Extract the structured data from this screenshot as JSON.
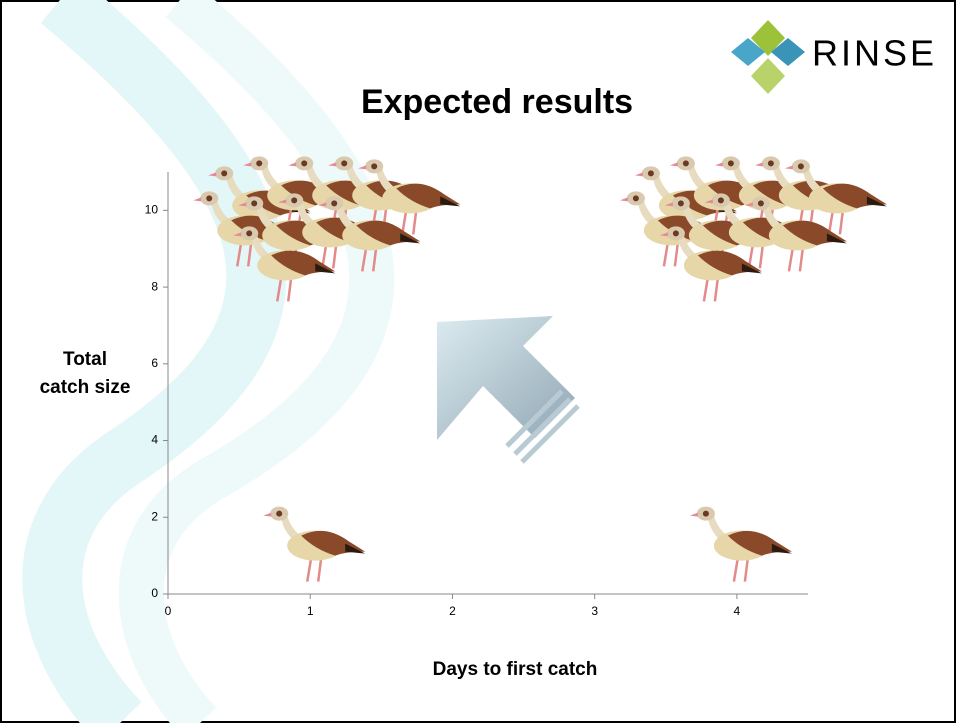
{
  "brand": "RINSE",
  "chart_data": {
    "type": "scatter",
    "title": "Expected results",
    "x_label": "Days to first catch",
    "y_label": "Total\ncatch size",
    "x": [
      1,
      4,
      1,
      4
    ],
    "values": [
      10,
      10,
      1,
      1
    ],
    "xlim": [
      0,
      4.5
    ],
    "ylim": [
      0,
      11
    ],
    "xticks": [
      0,
      1,
      2,
      3,
      4
    ],
    "yticks": [
      0,
      2,
      4,
      6,
      8,
      10
    ]
  }
}
